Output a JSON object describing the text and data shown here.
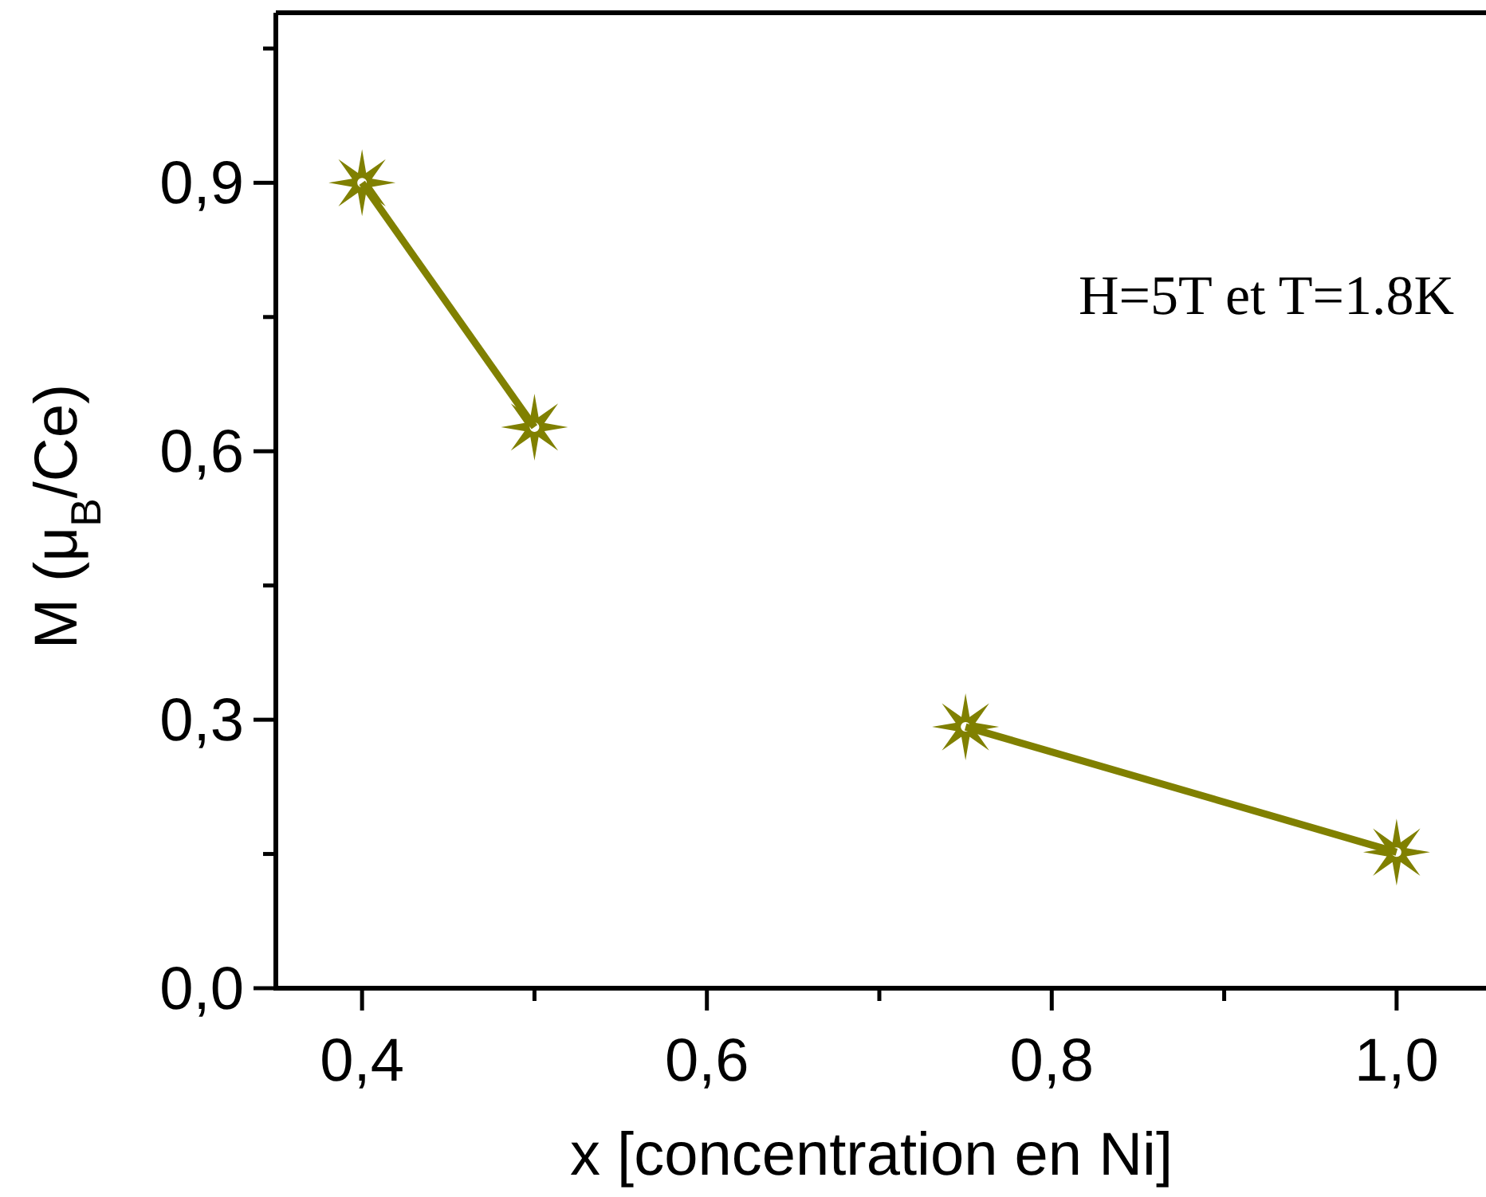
{
  "chart_data": {
    "type": "line",
    "xlabel": "x [concentration en Ni]",
    "ylabel": "M (μ$_{B}$/Ce)",
    "annotations": [
      "H=5T et T=1.8K"
    ],
    "xlim": [
      0.35,
      1.05
    ],
    "xticks": [
      {
        "value": 0.4,
        "label": "0,4"
      },
      {
        "value": 0.5,
        "label": null
      },
      {
        "value": 0.6,
        "label": "0,6"
      },
      {
        "value": 0.7,
        "label": null
      },
      {
        "value": 0.8,
        "label": "0,8"
      },
      {
        "value": 0.9,
        "label": null
      },
      {
        "value": 1.0,
        "label": "1,0"
      }
    ],
    "ylim": [
      0,
      1.09
    ],
    "yticks": [
      {
        "value": 0,
        "label": "0,0"
      },
      {
        "value": 0.15,
        "label": null
      },
      {
        "value": 0.3,
        "label": "0,3"
      },
      {
        "value": 0.45,
        "label": null
      },
      {
        "value": 0.6,
        "label": "0,6"
      },
      {
        "value": 0.75,
        "label": null
      },
      {
        "value": 0.9,
        "label": "0,9"
      },
      {
        "value": 1.05,
        "label": null
      }
    ],
    "marker": "star",
    "line_style": "solid",
    "grid": false,
    "series": [
      {
        "color": "#808000",
        "x": [
          0.4,
          0.5
        ],
        "values": [
          0.9,
          0.627
        ]
      },
      {
        "color": "#808000",
        "x": [
          0.75,
          1.0
        ],
        "values": [
          0.292,
          0.152
        ]
      }
    ]
  }
}
